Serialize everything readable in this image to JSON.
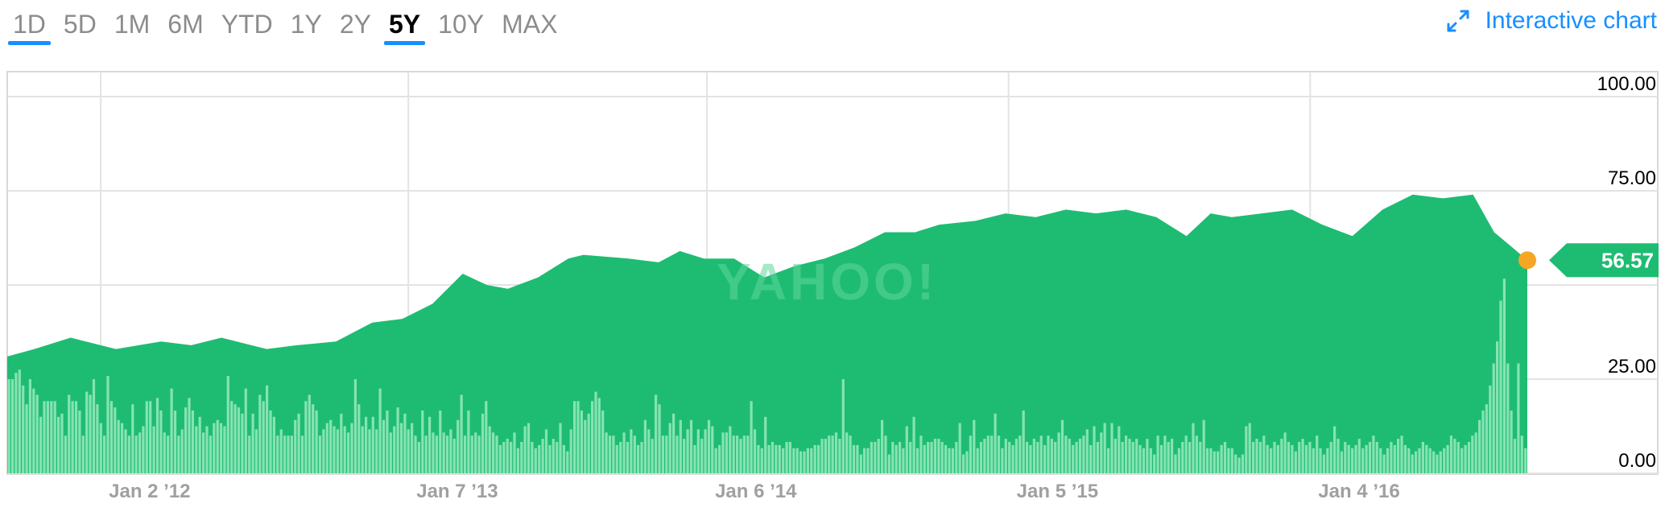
{
  "range_tabs": [
    {
      "label": "1D",
      "underlined": true
    },
    {
      "label": "5D"
    },
    {
      "label": "1M"
    },
    {
      "label": "6M"
    },
    {
      "label": "YTD"
    },
    {
      "label": "1Y"
    },
    {
      "label": "2Y"
    },
    {
      "label": "5Y",
      "selected": true,
      "underlined": true
    },
    {
      "label": "10Y"
    },
    {
      "label": "MAX"
    }
  ],
  "interactive_link": {
    "label": "Interactive chart",
    "icon": "expand-arrows-icon"
  },
  "watermark": "YAHOO!",
  "colors": {
    "area": "#1ebc72",
    "volume": "#86e3b3",
    "accent": "#188fff",
    "marker": "#f5a623",
    "grid": "#e3e3e3"
  },
  "chart_data": {
    "type": "area",
    "x_tick_labels": [
      "Jan 2 ’12",
      "Jan 7 ’13",
      "Jan 6 ’14",
      "Jan 5 ’15",
      "Jan 4 ’16"
    ],
    "x_tick_years": [
      2012.0,
      2013.02,
      2014.01,
      2015.01,
      2016.01
    ],
    "x_range": [
      2011.69,
      2016.73
    ],
    "y_ticks": [
      "0.00",
      "25.00",
      "75.00",
      "100.00"
    ],
    "y_tick_values": [
      0,
      25,
      75,
      100
    ],
    "ylim": [
      0,
      110
    ],
    "grid": true,
    "current_price": "56.57",
    "current_value": 56.57,
    "price_series": {
      "x": [
        2011.69,
        2011.78,
        2011.9,
        2012.05,
        2012.2,
        2012.3,
        2012.4,
        2012.55,
        2012.65,
        2012.78,
        2012.9,
        2013.0,
        2013.1,
        2013.2,
        2013.28,
        2013.35,
        2013.45,
        2013.55,
        2013.6,
        2013.75,
        2013.85,
        2013.92,
        2014.0,
        2014.1,
        2014.2,
        2014.3,
        2014.4,
        2014.5,
        2014.6,
        2014.7,
        2014.78,
        2014.9,
        2015.0,
        2015.1,
        2015.2,
        2015.3,
        2015.4,
        2015.5,
        2015.6,
        2015.68,
        2015.75,
        2015.85,
        2015.95,
        2016.05,
        2016.15,
        2016.25,
        2016.35,
        2016.45,
        2016.55,
        2016.62,
        2016.68,
        2016.73
      ],
      "y": [
        31,
        33,
        36,
        33,
        35,
        34,
        36,
        33,
        34,
        35,
        40,
        41,
        45,
        53,
        50,
        49,
        52,
        57,
        58,
        57,
        56,
        59,
        57,
        57,
        52,
        55,
        57,
        60,
        64,
        64,
        66,
        67,
        69,
        68,
        70,
        69,
        70,
        68,
        63,
        69,
        68,
        69,
        70,
        66,
        63,
        70,
        74,
        73,
        74,
        64,
        60,
        56.57
      ]
    },
    "volume_series": {
      "ylim": [
        0,
        60
      ],
      "values": [
        30,
        30,
        32,
        33,
        28,
        22,
        30,
        27,
        25,
        18,
        23,
        23,
        23,
        23,
        18,
        19,
        12,
        25,
        23,
        23,
        20,
        12,
        26,
        25,
        30,
        22,
        16,
        12,
        31,
        23,
        21,
        17,
        16,
        14,
        12,
        22,
        12,
        13,
        15,
        23,
        23,
        15,
        24,
        20,
        13,
        12,
        27,
        20,
        12,
        14,
        21,
        24,
        20,
        15,
        18,
        13,
        15,
        12,
        16,
        17,
        16,
        15,
        31,
        23,
        22,
        21,
        19,
        27,
        12,
        19,
        14,
        25,
        23,
        28,
        20,
        18,
        12,
        14,
        12,
        12,
        12,
        17,
        19,
        12,
        23,
        25,
        22,
        20,
        12,
        14,
        16,
        17,
        15,
        14,
        19,
        15,
        13,
        16,
        30,
        22,
        15,
        18,
        14,
        18,
        14,
        27,
        17,
        20,
        13,
        15,
        21,
        16,
        19,
        14,
        16,
        12,
        10,
        20,
        12,
        18,
        13,
        12,
        20,
        13,
        12,
        14,
        11,
        17,
        25,
        12,
        20,
        12,
        13,
        12,
        19,
        23,
        15,
        13,
        12,
        9,
        10,
        11,
        10,
        13,
        8,
        10,
        15,
        16,
        10,
        8,
        9,
        11,
        14,
        9,
        11,
        10,
        16,
        9,
        7,
        14,
        23,
        23,
        20,
        17,
        19,
        23,
        26,
        24,
        20,
        13,
        12,
        12,
        9,
        10,
        13,
        10,
        14,
        12,
        9,
        10,
        17,
        14,
        11,
        25,
        22,
        12,
        12,
        16,
        19,
        12,
        17,
        11,
        14,
        17,
        9,
        14,
        11,
        14,
        17,
        15,
        8,
        9,
        13,
        13,
        15,
        12,
        12,
        11,
        12,
        12,
        23,
        14,
        9,
        8,
        18,
        9,
        10,
        9,
        9,
        8,
        10,
        10,
        8,
        8,
        7,
        7,
        8,
        8,
        9,
        9,
        11,
        11,
        12,
        12,
        13,
        11,
        30,
        13,
        12,
        9,
        9,
        6,
        8,
        8,
        10,
        10,
        11,
        17,
        12,
        6,
        10,
        9,
        10,
        8,
        15,
        10,
        18,
        8,
        12,
        9,
        10,
        10,
        11,
        11,
        10,
        9,
        8,
        8,
        10,
        16,
        6,
        7,
        12,
        17,
        8,
        10,
        11,
        12,
        12,
        19,
        12,
        8,
        11,
        10,
        9,
        11,
        12,
        20,
        10,
        9,
        11,
        10,
        12,
        9,
        12,
        11,
        10,
        13,
        17,
        12,
        11,
        9,
        10,
        11,
        12,
        14,
        9,
        15,
        10,
        13,
        16,
        8,
        16,
        11,
        15,
        10,
        12,
        11,
        10,
        11,
        9,
        8,
        11,
        8,
        6,
        12,
        9,
        12,
        10,
        11,
        6,
        8,
        10,
        12,
        10,
        16,
        12,
        10,
        17,
        8,
        8,
        7,
        7,
        9,
        10,
        8,
        8,
        6,
        5,
        6,
        15,
        16,
        10,
        11,
        10,
        12,
        9,
        8,
        10,
        9,
        11,
        13,
        10,
        9,
        7,
        10,
        11,
        9,
        10,
        8,
        12,
        8,
        6,
        8,
        10,
        15,
        11,
        7,
        10,
        9,
        8,
        9,
        11,
        8,
        9,
        10,
        12,
        10,
        8,
        6,
        8,
        10,
        9,
        11,
        12,
        9,
        8,
        6,
        7,
        8,
        10,
        9,
        8,
        7,
        6,
        7,
        8,
        9,
        12,
        11,
        10,
        8,
        9,
        10,
        12,
        13,
        17,
        20,
        22,
        28,
        35,
        42,
        55,
        62,
        35,
        20,
        11,
        35,
        12,
        8
      ]
    }
  }
}
